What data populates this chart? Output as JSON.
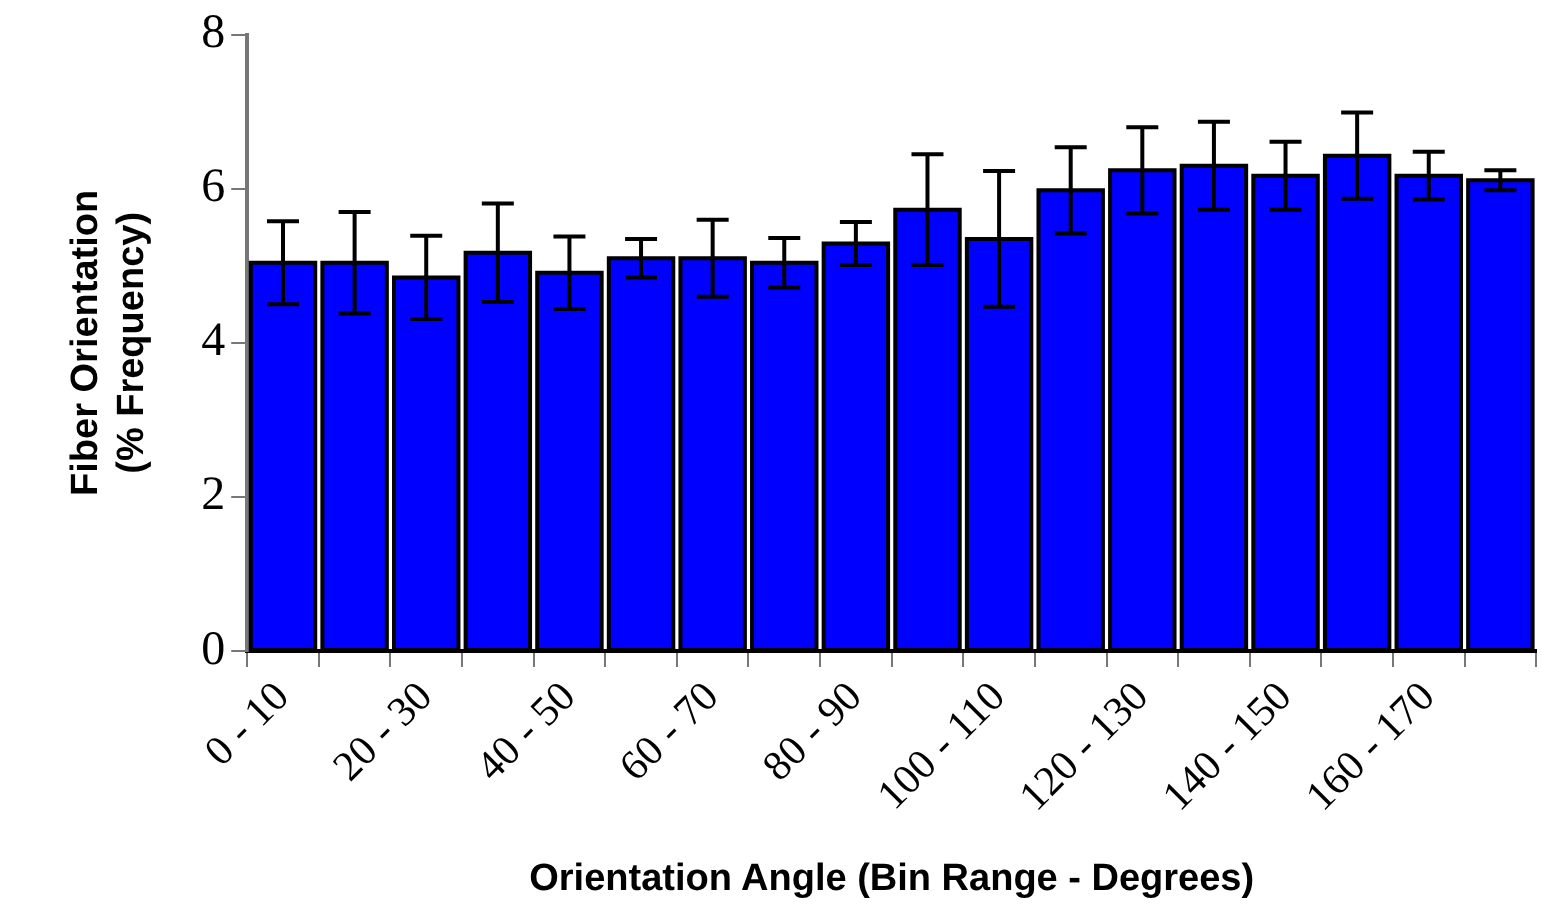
{
  "chart_data": {
    "type": "bar",
    "xlabel": "Orientation Angle (Bin Range - Degrees)",
    "ylabel": "Fiber Orientation\n(% Frequency)",
    "categories": [
      "0 - 10",
      null,
      "20 - 30",
      null,
      "40 - 50",
      null,
      "60 - 70",
      null,
      "80 - 90",
      null,
      "100 - 110",
      null,
      "120 - 130",
      null,
      "140 - 150",
      null,
      "160 - 170",
      null
    ],
    "values": [
      5.04,
      5.04,
      4.85,
      5.17,
      4.91,
      5.1,
      5.1,
      5.04,
      5.29,
      5.73,
      5.35,
      5.98,
      6.24,
      6.3,
      6.17,
      6.43,
      6.17,
      6.11
    ],
    "errors": [
      0.54,
      0.66,
      0.54,
      0.64,
      0.47,
      0.25,
      0.5,
      0.32,
      0.28,
      0.72,
      0.88,
      0.56,
      0.56,
      0.57,
      0.44,
      0.56,
      0.31,
      0.13
    ],
    "color": "#0000ff",
    "ylim": [
      0,
      8
    ],
    "yticks": [
      0,
      2,
      4,
      6,
      8
    ],
    "grid": false,
    "legend": false
  }
}
